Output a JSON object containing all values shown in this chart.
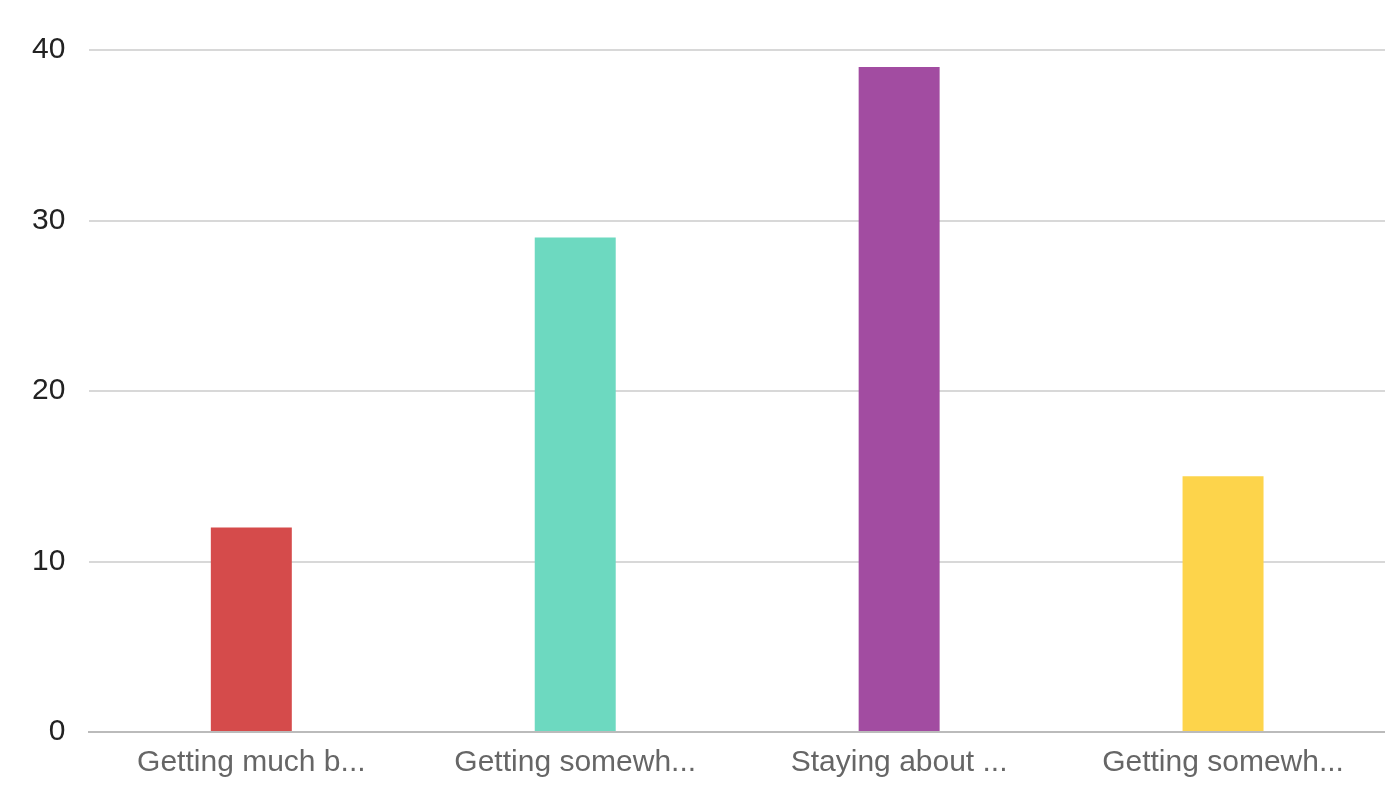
{
  "chart_data": {
    "type": "bar",
    "categories": [
      "Getting much b...",
      "Getting somewh...",
      "Staying about ...",
      "Getting somewh..."
    ],
    "values": [
      12,
      29,
      39,
      15
    ],
    "colors": [
      "#d54b4b",
      "#6dd9c0",
      "#a24ca1",
      "#fdd44b"
    ],
    "ylim": [
      0,
      40
    ],
    "yticks": [
      0,
      10,
      20,
      30,
      40
    ],
    "grid": "y",
    "legend": false
  }
}
